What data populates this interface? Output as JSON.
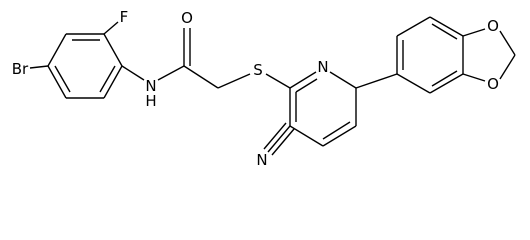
{
  "atoms": [
    {
      "label": "Br"
    },
    {
      "label": "F"
    },
    {
      "label": "O"
    },
    {
      "label": "N"
    },
    {
      "label": "H"
    },
    {
      "label": "S"
    },
    {
      "label": "N"
    },
    {
      "label": "N"
    },
    {
      "label": "O"
    },
    {
      "label": "O"
    }
  ]
}
